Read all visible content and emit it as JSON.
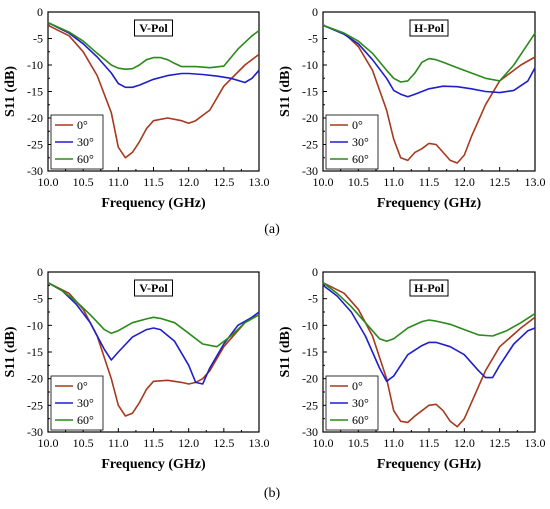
{
  "figure_labels": [
    "(a)",
    "(b)"
  ],
  "legend_entries": [
    "0°",
    "30°",
    "60°"
  ],
  "colors": {
    "0°": "#a63a1f",
    "30°": "#1f1fc8",
    "60°": "#2a8a1a"
  },
  "chart_data": [
    {
      "type": "line",
      "panel_label": "V-Pol",
      "group": "(a)",
      "xlabel": "Frequency (GHz)",
      "ylabel": "S11 (dB)",
      "xlim": [
        10.0,
        13.0
      ],
      "ylim": [
        -30,
        0
      ],
      "xticks": [
        "10.0",
        "10.5",
        "11.0",
        "11.5",
        "12.0",
        "12.5",
        "13.0"
      ],
      "yticks": [
        "0",
        "-5",
        "-10",
        "-15",
        "-20",
        "-25",
        "-30"
      ],
      "legend_position": "bottom-left",
      "series": [
        {
          "name": "0°",
          "x": [
            10.0,
            10.3,
            10.5,
            10.7,
            10.9,
            11.0,
            11.1,
            11.2,
            11.3,
            11.4,
            11.5,
            11.7,
            11.9,
            12.0,
            12.1,
            12.2,
            12.3,
            12.5,
            12.8,
            13.0
          ],
          "y": [
            -2.5,
            -4.5,
            -7.5,
            -12,
            -19,
            -25.5,
            -27.5,
            -26.5,
            -24.5,
            -22,
            -20.5,
            -20,
            -20.5,
            -21,
            -20.5,
            -19.5,
            -18.5,
            -14,
            -10,
            -8
          ]
        },
        {
          "name": "30°",
          "x": [
            10.0,
            10.3,
            10.5,
            10.7,
            10.9,
            11.0,
            11.1,
            11.2,
            11.3,
            11.5,
            11.7,
            11.9,
            12.0,
            12.2,
            12.4,
            12.6,
            12.8,
            12.9,
            13.0
          ],
          "y": [
            -2,
            -4,
            -6,
            -8.5,
            -11.5,
            -13.5,
            -14.2,
            -14.2,
            -13.8,
            -12.7,
            -12,
            -11.6,
            -11.6,
            -11.8,
            -12.1,
            -12.5,
            -13.3,
            -12.5,
            -11
          ]
        },
        {
          "name": "60°",
          "x": [
            10.0,
            10.3,
            10.5,
            10.7,
            10.9,
            11.0,
            11.1,
            11.2,
            11.3,
            11.4,
            11.5,
            11.6,
            11.7,
            11.8,
            11.9,
            12.1,
            12.3,
            12.5,
            12.7,
            12.9,
            13.0
          ],
          "y": [
            -2,
            -3.8,
            -5.5,
            -7.8,
            -10,
            -10.6,
            -10.8,
            -10.7,
            -10,
            -9,
            -8.6,
            -8.6,
            -9,
            -9.7,
            -10.3,
            -10.3,
            -10.5,
            -10.2,
            -7,
            -4.5,
            -3.5
          ]
        }
      ]
    },
    {
      "type": "line",
      "panel_label": "H-Pol",
      "group": "(a)",
      "xlabel": "Frequency (GHz)",
      "ylabel": "S11 (dB)",
      "xlim": [
        10.0,
        13.0
      ],
      "ylim": [
        -30,
        0
      ],
      "xticks": [
        "10.0",
        "10.5",
        "11.0",
        "11.5",
        "12.0",
        "12.5",
        "13.0"
      ],
      "yticks": [
        "0",
        "-5",
        "-10",
        "-15",
        "-20",
        "-25",
        "-30"
      ],
      "legend_position": "bottom-left",
      "series": [
        {
          "name": "0°",
          "x": [
            10.0,
            10.3,
            10.5,
            10.7,
            10.9,
            11.0,
            11.1,
            11.2,
            11.3,
            11.4,
            11.5,
            11.6,
            11.7,
            11.8,
            11.9,
            12.0,
            12.1,
            12.3,
            12.5,
            12.8,
            13.0
          ],
          "y": [
            -2.5,
            -4,
            -6.5,
            -11,
            -18.5,
            -24,
            -27.5,
            -28,
            -26.5,
            -25.8,
            -24.8,
            -25,
            -26.5,
            -28,
            -28.5,
            -27,
            -23.5,
            -17.5,
            -13,
            -10,
            -8.5
          ]
        },
        {
          "name": "30°",
          "x": [
            10.0,
            10.3,
            10.5,
            10.7,
            10.9,
            11.0,
            11.1,
            11.2,
            11.3,
            11.5,
            11.7,
            11.9,
            12.1,
            12.3,
            12.5,
            12.7,
            12.9,
            13.0
          ],
          "y": [
            -2.5,
            -4.2,
            -6,
            -9,
            -12.5,
            -14.8,
            -15.5,
            -16,
            -15.5,
            -14.5,
            -14,
            -14.1,
            -14.5,
            -15,
            -15.2,
            -14.8,
            -13,
            -10.5
          ]
        },
        {
          "name": "60°",
          "x": [
            10.0,
            10.3,
            10.5,
            10.7,
            10.9,
            11.0,
            11.1,
            11.2,
            11.3,
            11.4,
            11.5,
            11.6,
            11.7,
            11.9,
            12.1,
            12.3,
            12.5,
            12.7,
            12.9,
            13.0
          ],
          "y": [
            -2.5,
            -4,
            -5.5,
            -7.8,
            -11,
            -12.5,
            -13.2,
            -13,
            -11.5,
            -9.5,
            -8.8,
            -9,
            -9.5,
            -10.5,
            -11.5,
            -12.5,
            -13,
            -10,
            -6,
            -4
          ]
        }
      ]
    },
    {
      "type": "line",
      "panel_label": "V-Pol",
      "group": "(b)",
      "xlabel": "Frequency (GHz)",
      "ylabel": "S11 (dB)",
      "xlim": [
        10.0,
        13.0
      ],
      "ylim": [
        -30,
        0
      ],
      "xticks": [
        "10.0",
        "10.5",
        "11.0",
        "11.5",
        "12.0",
        "12.5",
        "13.0"
      ],
      "yticks": [
        "0",
        "-5",
        "-10",
        "-15",
        "-20",
        "-25",
        "-30"
      ],
      "legend_position": "bottom-left",
      "series": [
        {
          "name": "0°",
          "x": [
            10.0,
            10.3,
            10.5,
            10.7,
            10.9,
            11.0,
            11.1,
            11.2,
            11.3,
            11.4,
            11.5,
            11.7,
            11.9,
            12.0,
            12.1,
            12.2,
            12.3,
            12.5,
            12.8,
            13.0
          ],
          "y": [
            -2,
            -4,
            -7,
            -12,
            -20,
            -25,
            -27,
            -26.5,
            -24.5,
            -22,
            -20.5,
            -20.3,
            -20.7,
            -21,
            -20.7,
            -20,
            -18.5,
            -14,
            -9.5,
            -8
          ]
        },
        {
          "name": "30°",
          "x": [
            10.0,
            10.2,
            10.4,
            10.6,
            10.8,
            10.9,
            11.0,
            11.2,
            11.4,
            11.5,
            11.6,
            11.8,
            12.0,
            12.1,
            12.2,
            12.3,
            12.5,
            12.7,
            12.9,
            13.0
          ],
          "y": [
            -2,
            -3.5,
            -6,
            -9.5,
            -14.5,
            -16.5,
            -15,
            -12.2,
            -10.8,
            -10.5,
            -10.8,
            -13,
            -17.5,
            -20.7,
            -21,
            -18,
            -13.5,
            -10,
            -8.5,
            -7.5
          ]
        },
        {
          "name": "60°",
          "x": [
            10.0,
            10.2,
            10.4,
            10.6,
            10.8,
            10.9,
            11.0,
            11.2,
            11.4,
            11.5,
            11.6,
            11.8,
            12.0,
            12.2,
            12.4,
            12.6,
            12.8,
            13.0
          ],
          "y": [
            -2,
            -3.5,
            -5.5,
            -8,
            -10.8,
            -11.5,
            -11,
            -9.5,
            -8.8,
            -8.5,
            -8.7,
            -9.5,
            -11.5,
            -13.5,
            -14,
            -12,
            -9.5,
            -8
          ]
        }
      ]
    },
    {
      "type": "line",
      "panel_label": "H-Pol",
      "group": "(b)",
      "xlabel": "Frequency (GHz)",
      "ylabel": "S11 (dB)",
      "xlim": [
        10.0,
        13.0
      ],
      "ylim": [
        -30,
        0
      ],
      "xticks": [
        "10.0",
        "10.5",
        "11.0",
        "11.5",
        "12.0",
        "12.5",
        "13.0"
      ],
      "yticks": [
        "0",
        "-5",
        "-10",
        "-15",
        "-20",
        "-25",
        "-30"
      ],
      "legend_position": "bottom-left",
      "series": [
        {
          "name": "0°",
          "x": [
            10.0,
            10.3,
            10.5,
            10.7,
            10.9,
            11.0,
            11.1,
            11.2,
            11.3,
            11.4,
            11.5,
            11.6,
            11.7,
            11.8,
            11.9,
            12.0,
            12.1,
            12.3,
            12.5,
            12.8,
            13.0
          ],
          "y": [
            -2,
            -4,
            -7,
            -12,
            -20,
            -26,
            -28,
            -28.2,
            -27,
            -26,
            -25,
            -24.8,
            -26,
            -28,
            -29,
            -27.5,
            -24.5,
            -18.5,
            -14,
            -10.5,
            -8.5
          ]
        },
        {
          "name": "30°",
          "x": [
            10.0,
            10.2,
            10.4,
            10.6,
            10.8,
            10.9,
            11.0,
            11.2,
            11.4,
            11.5,
            11.6,
            11.8,
            12.0,
            12.2,
            12.3,
            12.4,
            12.5,
            12.7,
            12.9,
            13.0
          ],
          "y": [
            -2.5,
            -4.5,
            -7.5,
            -12,
            -18,
            -20.5,
            -19.5,
            -15.5,
            -13.8,
            -13.2,
            -13.2,
            -14,
            -15.5,
            -18.5,
            -19.8,
            -19.8,
            -17.5,
            -13.5,
            -11,
            -10.5
          ]
        },
        {
          "name": "60°",
          "x": [
            10.0,
            10.2,
            10.4,
            10.6,
            10.8,
            10.9,
            11.0,
            11.2,
            11.4,
            11.5,
            11.6,
            11.8,
            12.0,
            12.2,
            12.4,
            12.6,
            12.8,
            13.0
          ],
          "y": [
            -2,
            -4,
            -6.5,
            -9.5,
            -12.5,
            -13,
            -12.5,
            -10.5,
            -9.3,
            -9,
            -9.2,
            -9.8,
            -10.8,
            -11.8,
            -12,
            -11,
            -9.5,
            -7.8
          ]
        }
      ]
    }
  ]
}
